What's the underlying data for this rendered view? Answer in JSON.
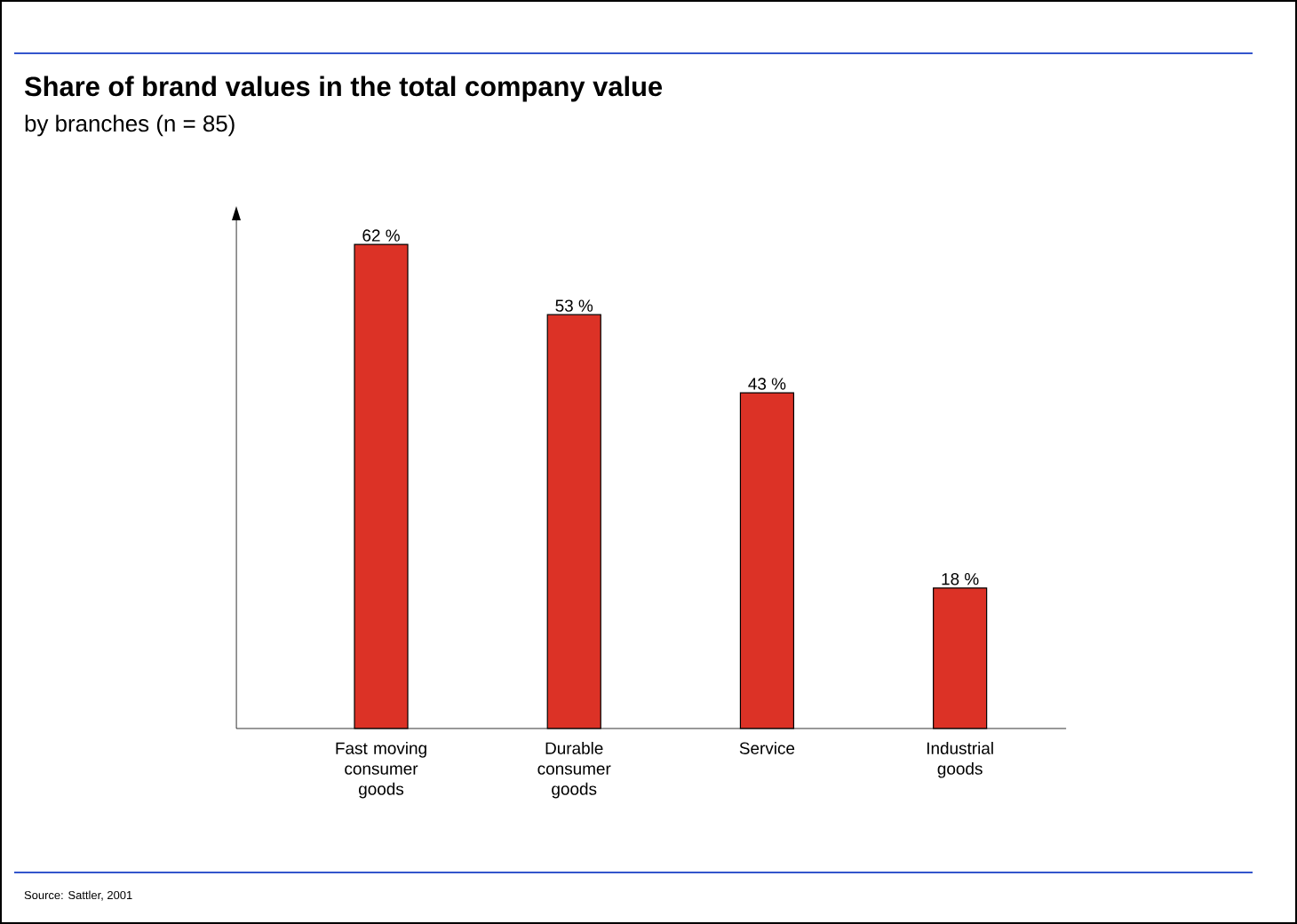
{
  "chart_data": {
    "type": "bar",
    "title": "Share of brand values in the total company value",
    "subtitle": "by branches (n = 85)",
    "categories": [
      "Fast moving consumer goods",
      "Durable consumer goods",
      "Service",
      "Industrial goods"
    ],
    "values": [
      62,
      53,
      43,
      18
    ],
    "value_labels": [
      "62 %",
      "53 %",
      "43 %",
      "18 %"
    ],
    "color": "#dc3226",
    "ylim": [
      0,
      66
    ],
    "tick_labels": "x",
    "annotations": [
      "Source: Sattler, 2001"
    ]
  }
}
